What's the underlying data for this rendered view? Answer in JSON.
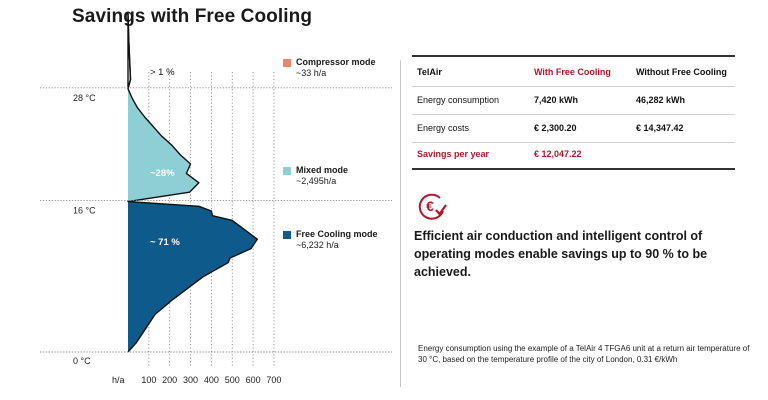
{
  "title": "Savings with Free Cooling",
  "chart_data": {
    "type": "area",
    "orientation": "horizontal",
    "x_axis_label": "h/a",
    "x_ticks": [
      "100",
      "200",
      "300",
      "400",
      "500",
      "600",
      "700"
    ],
    "x_range": [
      0,
      700
    ],
    "y_range_celsius": [
      0,
      36
    ],
    "y_tick_labels": [
      {
        "label": "28 °C",
        "value": 28
      },
      {
        "label": "16 °C",
        "value": 16
      },
      {
        "label": "0 °C",
        "value": 0
      }
    ],
    "regions": [
      {
        "name": "Compressor mode",
        "range_celsius": [
          28,
          36
        ],
        "share_label": "> 1 %",
        "hours": "~33 h/a",
        "color": "#e8856c"
      },
      {
        "name": "Mixed mode",
        "range_celsius": [
          16,
          28
        ],
        "share_label": "~28%",
        "hours": "~2,495h/a",
        "color": "#8ecfd6"
      },
      {
        "name": "Free Cooling mode",
        "range_celsius": [
          0,
          16
        ],
        "share_label": "~ 71 %",
        "hours": "~6,232 h/a",
        "color": "#0e5a8a"
      }
    ],
    "distribution_h_per_a": [
      {
        "t": 36,
        "h": 0
      },
      {
        "t": 33,
        "h": 4
      },
      {
        "t": 31,
        "h": 8
      },
      {
        "t": 29,
        "h": 12
      },
      {
        "t": 28,
        "h": 0
      },
      {
        "t": 27,
        "h": 20
      },
      {
        "t": 26,
        "h": 45
      },
      {
        "t": 25,
        "h": 80
      },
      {
        "t": 24,
        "h": 120
      },
      {
        "t": 23,
        "h": 160
      },
      {
        "t": 22,
        "h": 210
      },
      {
        "t": 21,
        "h": 250
      },
      {
        "t": 20,
        "h": 300
      },
      {
        "t": 19,
        "h": 280
      },
      {
        "t": 18,
        "h": 340
      },
      {
        "t": 17,
        "h": 295
      },
      {
        "t": 16,
        "h": 0
      },
      {
        "t": 15.5,
        "h": 340
      },
      {
        "t": 15,
        "h": 400
      },
      {
        "t": 14.5,
        "h": 405
      },
      {
        "t": 14,
        "h": 500
      },
      {
        "t": 13,
        "h": 560
      },
      {
        "t": 12,
        "h": 620
      },
      {
        "t": 11,
        "h": 590
      },
      {
        "t": 10,
        "h": 490
      },
      {
        "t": 9.5,
        "h": 480
      },
      {
        "t": 8,
        "h": 360
      },
      {
        "t": 7,
        "h": 300
      },
      {
        "t": 5.5,
        "h": 210
      },
      {
        "t": 4,
        "h": 130
      },
      {
        "t": 2,
        "h": 70
      },
      {
        "t": 1,
        "h": 40
      },
      {
        "t": 0,
        "h": 0
      }
    ]
  },
  "legend": [
    {
      "name": "Compressor mode",
      "hours": "~33 h/a",
      "color": "#e8856c"
    },
    {
      "name": "Mixed mode",
      "hours": "~2,495h/a",
      "color": "#8ecfd6"
    },
    {
      "name": "Free Cooling mode",
      "hours": "~6,232 h/a",
      "color": "#0e5a8a"
    }
  ],
  "table": {
    "headers": [
      "TelAir",
      "With Free Cooling",
      "Without Free Cooling"
    ],
    "rows": [
      [
        "Energy consumption",
        "7,420 kWh",
        "46,282 kWh"
      ],
      [
        "Energy costs",
        "€ 2,300.20",
        "€ 14,347.42"
      ],
      [
        "Savings per year",
        "€ 12,047.22",
        ""
      ]
    ]
  },
  "icon": "euro-check-icon",
  "accent_color": "#b0182a",
  "statement": "Efficient air conduction and intelligent control of operating modes enable savings up to 90 % to be achieved.",
  "footnote": "Energy consumption using the example of a TelAir 4 TFGA6 unit at a return air temperature of 30 °C, based on the temperature profile of the city of London, 0.31 €/kWh"
}
